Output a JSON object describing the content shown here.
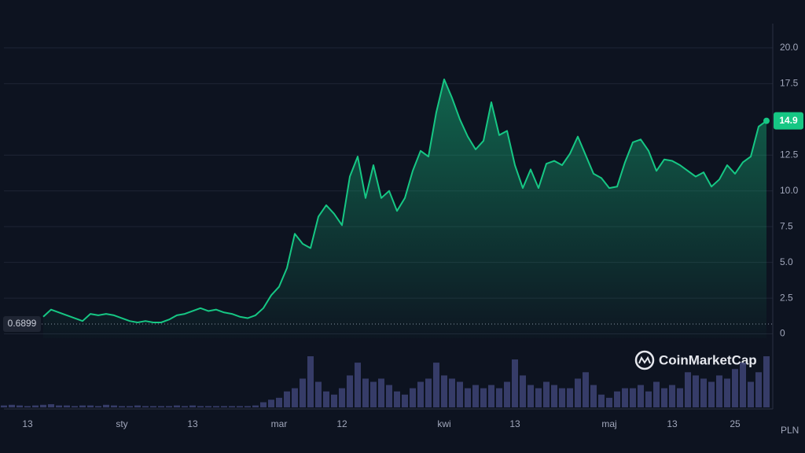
{
  "chart_data": {
    "type": "line",
    "categories": [
      null,
      null,
      null,
      "13",
      null,
      null,
      null,
      null,
      null,
      null,
      null,
      null,
      null,
      null,
      null,
      "sty",
      null,
      null,
      null,
      null,
      null,
      null,
      null,
      null,
      "13",
      null,
      null,
      null,
      null,
      null,
      null,
      null,
      null,
      null,
      null,
      "mar",
      null,
      null,
      null,
      null,
      null,
      null,
      null,
      "12",
      null,
      null,
      null,
      null,
      null,
      null,
      null,
      null,
      null,
      null,
      null,
      null,
      "kwi",
      null,
      null,
      null,
      null,
      null,
      null,
      null,
      null,
      "13",
      null,
      null,
      null,
      null,
      null,
      null,
      null,
      null,
      null,
      null,
      null,
      "maj",
      null,
      null,
      null,
      null,
      null,
      null,
      null,
      "13",
      null,
      null,
      null,
      null,
      null,
      null,
      null,
      "25",
      null,
      null,
      null,
      null
    ],
    "series": [
      {
        "color": "#16c784",
        "values": [
          null,
          null,
          null,
          null,
          null,
          1.2,
          1.7,
          1.5,
          1.3,
          1.1,
          0.9,
          1.4,
          1.3,
          1.4,
          1.3,
          1.1,
          0.9,
          0.8,
          0.9,
          0.8,
          0.8,
          1.0,
          1.3,
          1.4,
          1.6,
          1.8,
          1.6,
          1.7,
          1.5,
          1.4,
          1.2,
          1.1,
          1.3,
          1.8,
          2.7,
          3.3,
          4.6,
          7.0,
          6.3,
          6.0,
          8.2,
          9.0,
          8.4,
          7.6,
          11.0,
          12.4,
          9.5,
          11.8,
          9.5,
          10.0,
          8.6,
          9.5,
          11.4,
          12.8,
          12.4,
          15.5,
          17.8,
          16.5,
          15.0,
          13.8,
          12.9,
          13.5,
          16.2,
          13.9,
          14.2,
          11.8,
          10.2,
          11.5,
          10.2,
          11.9,
          12.1,
          11.8,
          12.6,
          13.8,
          12.5,
          11.2,
          10.9,
          10.2,
          10.3,
          12.0,
          13.4,
          13.6,
          12.8,
          11.4,
          12.2,
          12.1,
          11.8,
          11.4,
          11.0,
          11.3,
          10.3,
          10.8,
          11.8,
          11.2,
          12.0,
          12.4,
          14.5,
          14.9
        ]
      }
    ],
    "volume": {
      "color": "#3b4170",
      "values": [
        3,
        4,
        3,
        2,
        3,
        4,
        5,
        3,
        3,
        2,
        3,
        3,
        2,
        4,
        3,
        2,
        2,
        3,
        2,
        2,
        2,
        2,
        3,
        2,
        3,
        2,
        2,
        2,
        2,
        2,
        2,
        2,
        3,
        8,
        12,
        15,
        25,
        30,
        45,
        80,
        40,
        25,
        20,
        30,
        50,
        70,
        45,
        40,
        45,
        35,
        25,
        20,
        30,
        40,
        45,
        70,
        50,
        45,
        40,
        30,
        35,
        30,
        35,
        30,
        40,
        75,
        50,
        35,
        30,
        40,
        35,
        30,
        30,
        45,
        55,
        35,
        20,
        15,
        25,
        30,
        30,
        35,
        25,
        40,
        30,
        35,
        30,
        55,
        50,
        45,
        40,
        50,
        45,
        60,
        70,
        40,
        55,
        80
      ]
    },
    "ylim": [
      -0.3,
      21.7
    ],
    "yticks": [
      0,
      2.5,
      {
        "value": 5,
        "label": "5.0"
      },
      7.5,
      {
        "value": 10,
        "label": "10.0"
      },
      12.5,
      17.5,
      {
        "value": 20,
        "label": "20.0"
      }
    ],
    "grid": true,
    "reference_price": 0.6899,
    "current_price": 14.9,
    "currency": "PLN",
    "watermark": "CoinMarketCap"
  }
}
